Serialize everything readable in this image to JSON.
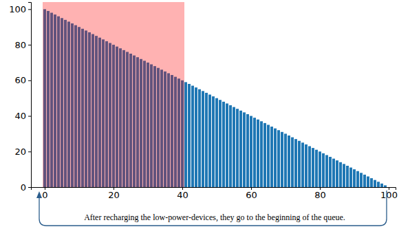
{
  "chart_data": {
    "type": "bar",
    "x": [
      0,
      1,
      2,
      3,
      4,
      5,
      6,
      7,
      8,
      9,
      10,
      11,
      12,
      13,
      14,
      15,
      16,
      17,
      18,
      19,
      20,
      21,
      22,
      23,
      24,
      25,
      26,
      27,
      28,
      29,
      30,
      31,
      32,
      33,
      34,
      35,
      36,
      37,
      38,
      39,
      40,
      41,
      42,
      43,
      44,
      45,
      46,
      47,
      48,
      49,
      50,
      51,
      52,
      53,
      54,
      55,
      56,
      57,
      58,
      59,
      60,
      61,
      62,
      63,
      64,
      65,
      66,
      67,
      68,
      69,
      70,
      71,
      72,
      73,
      74,
      75,
      76,
      77,
      78,
      79,
      80,
      81,
      82,
      83,
      84,
      85,
      86,
      87,
      88,
      89,
      90,
      91,
      92,
      93,
      94,
      95,
      96,
      97,
      98,
      99
    ],
    "values": [
      100,
      99,
      98,
      97,
      96,
      95,
      94,
      93,
      92,
      91,
      90,
      89,
      88,
      87,
      86,
      85,
      84,
      83,
      82,
      81,
      80,
      79,
      78,
      77,
      76,
      75,
      74,
      73,
      72,
      71,
      70,
      69,
      68,
      67,
      66,
      65,
      64,
      63,
      62,
      61,
      60,
      59,
      58,
      57,
      56,
      55,
      54,
      53,
      52,
      51,
      50,
      49,
      48,
      47,
      46,
      45,
      44,
      43,
      42,
      41,
      40,
      39,
      38,
      37,
      36,
      35,
      34,
      33,
      32,
      31,
      30,
      29,
      28,
      27,
      26,
      25,
      24,
      23,
      22,
      21,
      20,
      19,
      18,
      17,
      16,
      15,
      14,
      13,
      12,
      11,
      10,
      9,
      8,
      7,
      6,
      5,
      4,
      3,
      2,
      1
    ],
    "color": "#1f77b4",
    "xlim": [
      -4,
      102
    ],
    "xticks": [
      0,
      20,
      40,
      60,
      80,
      100
    ],
    "ylim": [
      0,
      104
    ],
    "yticks": [
      0,
      20,
      40,
      60,
      80,
      100
    ],
    "span_x": [
      -0.6,
      40.6
    ],
    "span_color": "#ff0000",
    "annotation": "After recharging the low-power-devices, they go to the beginning of the queue."
  }
}
